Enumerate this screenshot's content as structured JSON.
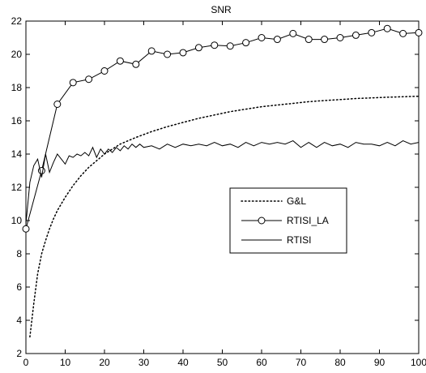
{
  "chart_data": {
    "type": "line",
    "title": "SNR",
    "xlabel": "",
    "ylabel": "",
    "xlim": [
      0,
      100
    ],
    "ylim": [
      2,
      22
    ],
    "x_ticks": [
      0,
      10,
      20,
      30,
      40,
      50,
      60,
      70,
      80,
      90,
      100
    ],
    "y_ticks": [
      2,
      4,
      6,
      8,
      10,
      12,
      14,
      16,
      18,
      20,
      22
    ],
    "grid": false,
    "legend_position": "center-right",
    "series": [
      {
        "name": "G&L",
        "style": "dotted",
        "color": "#000000",
        "x": [
          1,
          2,
          3,
          4,
          5,
          6,
          7,
          8,
          10,
          12,
          14,
          16,
          18,
          20,
          24,
          28,
          32,
          36,
          40,
          44,
          48,
          52,
          56,
          60,
          64,
          68,
          72,
          76,
          80,
          84,
          88,
          92,
          96,
          100
        ],
        "y": [
          3.0,
          5.0,
          6.8,
          8.0,
          8.8,
          9.5,
          10.1,
          10.6,
          11.4,
          12.1,
          12.7,
          13.2,
          13.6,
          14.0,
          14.6,
          15.0,
          15.35,
          15.65,
          15.9,
          16.15,
          16.35,
          16.55,
          16.7,
          16.85,
          16.95,
          17.05,
          17.15,
          17.22,
          17.28,
          17.34,
          17.38,
          17.42,
          17.45,
          17.48
        ]
      },
      {
        "name": "RTISI_LA",
        "style": "solid-circle",
        "color": "#000000",
        "x": [
          0,
          4,
          8,
          12,
          16,
          20,
          24,
          28,
          32,
          36,
          40,
          44,
          48,
          52,
          56,
          60,
          64,
          68,
          72,
          76,
          80,
          84,
          88,
          92,
          96,
          100
        ],
        "y": [
          9.5,
          13.0,
          17.0,
          18.3,
          18.5,
          19.0,
          19.6,
          19.4,
          20.2,
          20.0,
          20.1,
          20.4,
          20.55,
          20.5,
          20.7,
          21.0,
          20.9,
          21.25,
          20.9,
          20.9,
          21.0,
          21.15,
          21.3,
          21.55,
          21.25,
          21.3
        ]
      },
      {
        "name": "RTISI",
        "style": "solid",
        "color": "#000000",
        "x": [
          0,
          1,
          2,
          3,
          4,
          5,
          6,
          7,
          8,
          9,
          10,
          11,
          12,
          13,
          14,
          15,
          16,
          17,
          18,
          19,
          20,
          21,
          22,
          23,
          24,
          25,
          26,
          27,
          28,
          29,
          30,
          32,
          34,
          36,
          38,
          40,
          42,
          44,
          46,
          48,
          50,
          52,
          54,
          56,
          58,
          60,
          62,
          64,
          66,
          68,
          70,
          72,
          74,
          76,
          78,
          80,
          82,
          84,
          86,
          88,
          90,
          92,
          94,
          96,
          98,
          100
        ],
        "y": [
          9.8,
          12.3,
          13.3,
          13.7,
          12.6,
          14.0,
          12.9,
          13.5,
          14.0,
          13.7,
          13.4,
          13.9,
          13.8,
          14.0,
          13.9,
          14.1,
          13.9,
          14.4,
          13.8,
          14.3,
          14.0,
          14.3,
          14.1,
          14.4,
          14.2,
          14.5,
          14.3,
          14.6,
          14.4,
          14.6,
          14.4,
          14.5,
          14.3,
          14.6,
          14.4,
          14.6,
          14.5,
          14.6,
          14.5,
          14.7,
          14.5,
          14.6,
          14.4,
          14.7,
          14.5,
          14.7,
          14.6,
          14.7,
          14.6,
          14.8,
          14.4,
          14.7,
          14.4,
          14.7,
          14.5,
          14.6,
          14.4,
          14.7,
          14.6,
          14.6,
          14.5,
          14.7,
          14.5,
          14.8,
          14.6,
          14.7
        ]
      }
    ]
  }
}
